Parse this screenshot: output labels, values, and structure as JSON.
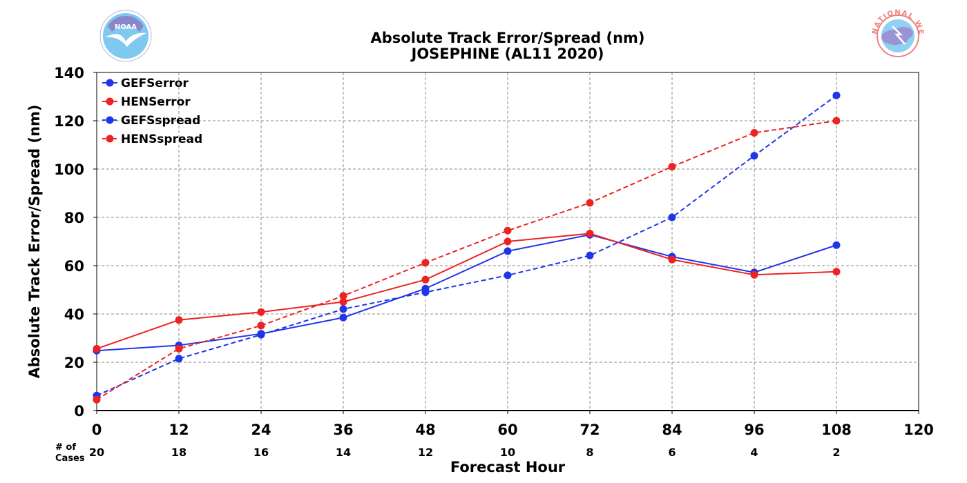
{
  "chart_data": {
    "type": "line",
    "title": "Absolute Track Error/Spread (nm)",
    "subtitle": "JOSEPHINE (AL11 2020)",
    "xlabel": "Forecast Hour",
    "ylabel": "Absolute Track Error/Spread (nm)",
    "xlim": [
      0,
      120
    ],
    "ylim": [
      0,
      140
    ],
    "x_ticks": [
      0,
      12,
      24,
      36,
      48,
      60,
      72,
      84,
      96,
      108,
      120
    ],
    "y_ticks": [
      0,
      20,
      40,
      60,
      80,
      100,
      120,
      140
    ],
    "grid": true,
    "legend_position": "top-left",
    "cases_label": "# of\nCases",
    "cases_label_line1": "# of",
    "cases_label_line2": "Cases",
    "cases_x": [
      0,
      12,
      24,
      36,
      48,
      60,
      72,
      84,
      96,
      108
    ],
    "cases": [
      "20",
      "18",
      "16",
      "14",
      "12",
      "10",
      "8",
      "6",
      "4",
      "2"
    ],
    "series": [
      {
        "name": "GEFSerror",
        "color": "#1f35e8",
        "dash": false,
        "x": [
          0,
          12,
          24,
          36,
          48,
          60,
          72,
          84,
          96,
          108
        ],
        "values": [
          24.8,
          27.0,
          31.8,
          38.5,
          50.5,
          66.0,
          72.8,
          63.7,
          57.2,
          68.5
        ]
      },
      {
        "name": "HENSerror",
        "color": "#ee2222",
        "dash": false,
        "x": [
          0,
          12,
          24,
          36,
          48,
          60,
          72,
          84,
          96,
          108
        ],
        "values": [
          25.6,
          37.5,
          40.8,
          45.0,
          54.2,
          70.0,
          73.3,
          62.5,
          56.2,
          57.5
        ]
      },
      {
        "name": "GEFSspread",
        "color": "#1f35e8",
        "dash": true,
        "x": [
          0,
          12,
          24,
          36,
          48,
          60,
          72,
          84,
          96,
          108
        ],
        "values": [
          6.2,
          21.5,
          31.4,
          42.0,
          49.0,
          56.0,
          64.2,
          80.0,
          105.5,
          130.5
        ]
      },
      {
        "name": "HENSspread",
        "color": "#ee2222",
        "dash": true,
        "x": [
          0,
          12,
          24,
          36,
          48,
          60,
          72,
          84,
          96,
          108
        ],
        "values": [
          4.5,
          25.6,
          35.2,
          47.5,
          61.2,
          74.5,
          86.0,
          101.0,
          115.0,
          120.0
        ]
      }
    ]
  },
  "logos": {
    "left": {
      "name": "noaa-logo",
      "text": "NOAA",
      "color": "#7fc8ef"
    },
    "right": {
      "name": "nws-logo",
      "text": "NATIONAL WEATHER SERVICE",
      "color": "#f08080"
    }
  }
}
